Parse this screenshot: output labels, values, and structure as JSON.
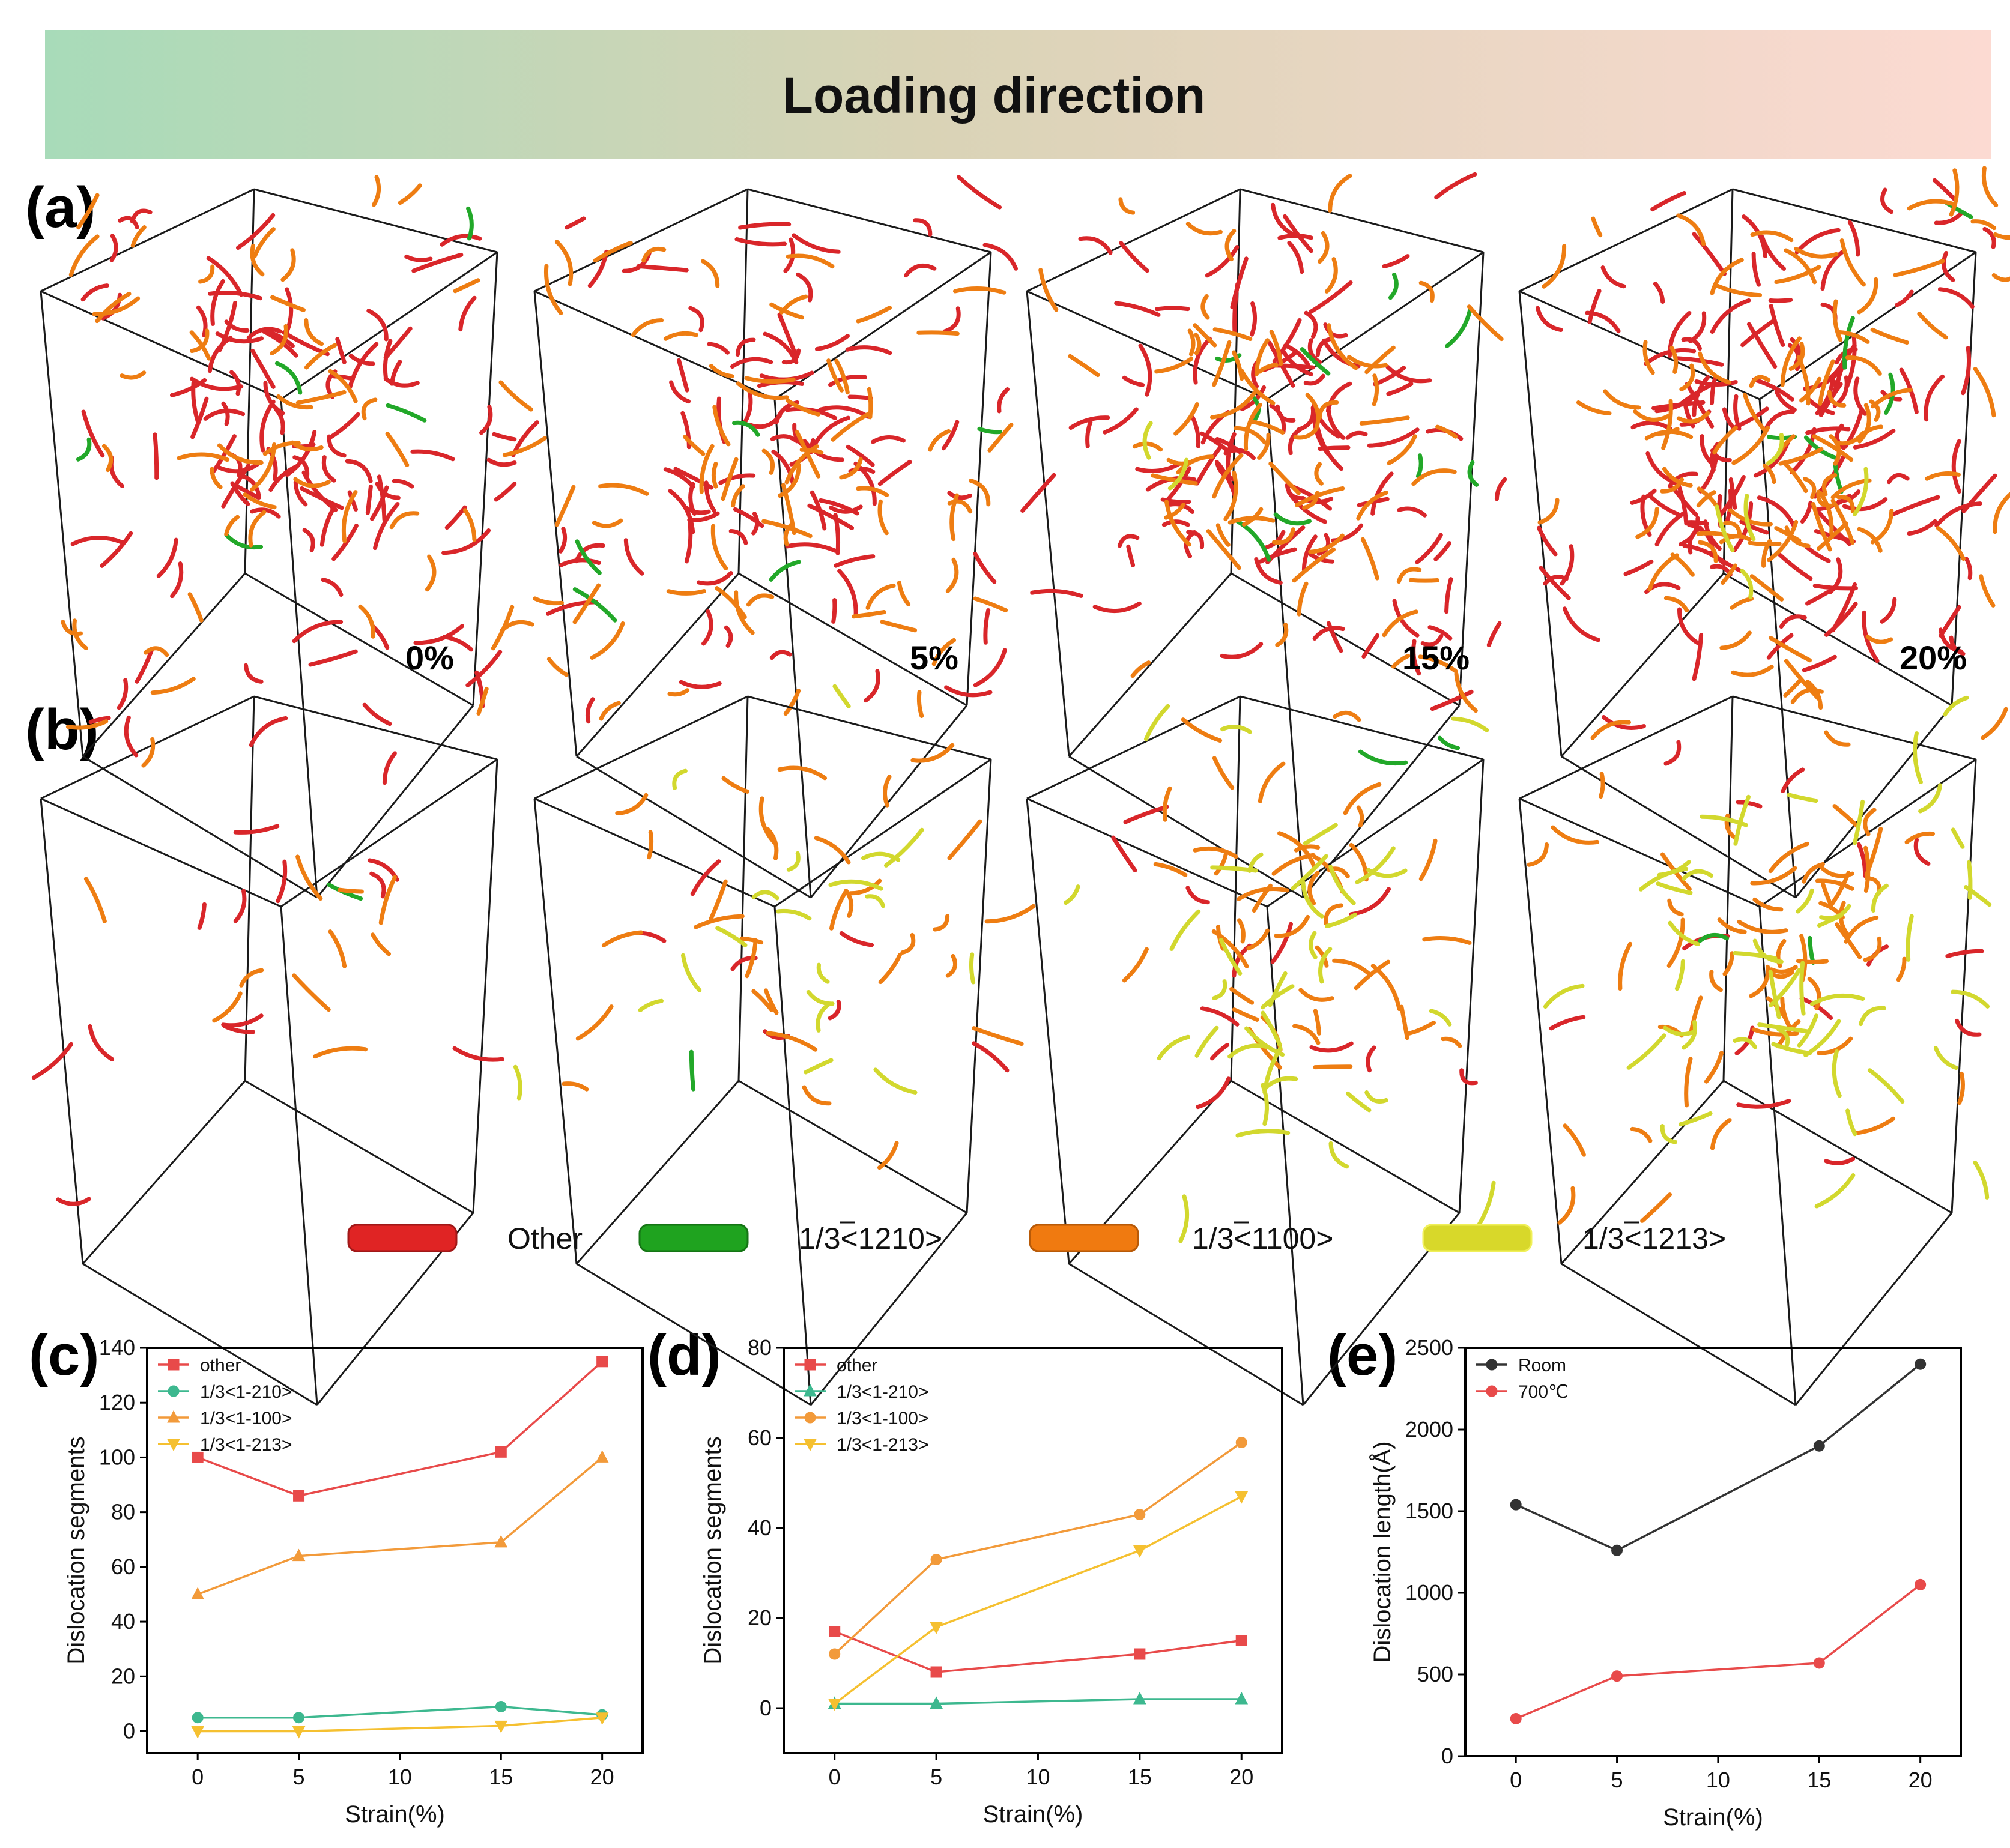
{
  "banner": {
    "title": "Loading direction",
    "color_start": "#a8dbb9",
    "color_mid": "#d9d3b6",
    "color_end": "#fcdad2"
  },
  "panels": {
    "a": {
      "label": "(a)",
      "strains": [
        "0%",
        "5%",
        "15%",
        "20%"
      ]
    },
    "b": {
      "label": "(b)"
    },
    "c": {
      "label": "(c)"
    },
    "d": {
      "label": "(d)"
    },
    "e": {
      "label": "(e)"
    }
  },
  "dislocation_legend": [
    {
      "label": "Other",
      "color": "#e02424"
    },
    {
      "label": "1/3<1Ƅ2̄ 10>",
      "color": "#1fa31f"
    },
    {
      "label": "1/3<1 1̄ 00>",
      "color": "#f07a10"
    },
    {
      "label": "1/3<1 2̄ 13>",
      "color": "#d8d82a"
    }
  ],
  "cube_dislocation_density": {
    "a": {
      "other": [
        100,
        86,
        102,
        135
      ],
      "1/3<1-210>": [
        5,
        5,
        9,
        6
      ],
      "1/3<1-100>": [
        50,
        64,
        69,
        100
      ],
      "1/3<1-213>": [
        0,
        0,
        2,
        5
      ]
    },
    "b": {
      "other": [
        17,
        8,
        12,
        15
      ],
      "1/3<1-210>": [
        1,
        1,
        2,
        2
      ],
      "1/3<1-100>": [
        12,
        33,
        43,
        59
      ],
      "1/3<1-213>": [
        1,
        18,
        35,
        47
      ]
    }
  },
  "chart_data": [
    {
      "type": "line",
      "panel": "(c)",
      "xlabel": "Strain(%)",
      "ylabel": "Dislocation segments",
      "xlim": [
        -2.5,
        22
      ],
      "ylim": [
        -8,
        140
      ],
      "xticks": [
        0,
        5,
        10,
        15,
        20
      ],
      "yticks": [
        0,
        20,
        40,
        60,
        80,
        100,
        120,
        140
      ],
      "legend_position": "top-left",
      "x": [
        0,
        5,
        15,
        20
      ],
      "series": [
        {
          "name": "other",
          "values": [
            100,
            86,
            102,
            135
          ],
          "color": "#e84a4a",
          "marker": "square"
        },
        {
          "name": "1/3<1-210>",
          "values": [
            5,
            5,
            9,
            6
          ],
          "color": "#3db88f",
          "marker": "circle"
        },
        {
          "name": "1/3<1-100>",
          "values": [
            50,
            64,
            69,
            100
          ],
          "color": "#f29a3a",
          "marker": "triangle-up"
        },
        {
          "name": "1/3<1-213>",
          "values": [
            0,
            0,
            2,
            5
          ],
          "color": "#f5c030",
          "marker": "triangle-down"
        }
      ]
    },
    {
      "type": "line",
      "panel": "(d)",
      "xlabel": "Strain(%)",
      "ylabel": "Dislocation segments",
      "xlim": [
        -2.5,
        22
      ],
      "ylim": [
        -10,
        80
      ],
      "xticks": [
        0,
        5,
        10,
        15,
        20
      ],
      "yticks": [
        0,
        20,
        40,
        60,
        80
      ],
      "legend_position": "top-left",
      "x": [
        0,
        5,
        15,
        20
      ],
      "series": [
        {
          "name": "other",
          "values": [
            17,
            8,
            12,
            15
          ],
          "color": "#e84a4a",
          "marker": "square"
        },
        {
          "name": "1/3<1-210>",
          "values": [
            1,
            1,
            2,
            2
          ],
          "color": "#3db88f",
          "marker": "triangle-up"
        },
        {
          "name": "1/3<1-100>",
          "values": [
            12,
            33,
            43,
            59
          ],
          "color": "#f29a3a",
          "marker": "circle"
        },
        {
          "name": "1/3<1-213>",
          "values": [
            1,
            18,
            35,
            47
          ],
          "color": "#f5c030",
          "marker": "triangle-down"
        }
      ]
    },
    {
      "type": "line",
      "panel": "(e)",
      "xlabel": "Strain(%)",
      "ylabel": "Dislocation length(Å)",
      "xlim": [
        -2.5,
        22
      ],
      "ylim": [
        0,
        2500
      ],
      "xticks": [
        0,
        5,
        10,
        15,
        20
      ],
      "yticks": [
        0,
        500,
        1000,
        1500,
        2000,
        2500
      ],
      "legend_position": "top-left",
      "x": [
        0,
        5,
        15,
        20
      ],
      "series": [
        {
          "name": "Room",
          "values": [
            1540,
            1260,
            1900,
            2400
          ],
          "color": "#333333",
          "marker": "circle"
        },
        {
          "name": "700℃",
          "values": [
            230,
            490,
            570,
            1050
          ],
          "color": "#e84a4a",
          "marker": "circle"
        }
      ]
    }
  ]
}
